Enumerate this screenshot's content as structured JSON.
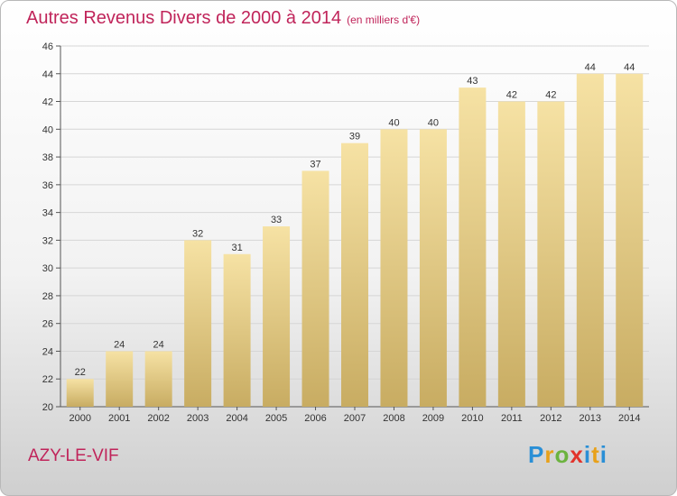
{
  "title": "Autres Revenus Divers de 2000 à 2014",
  "subtitle": "(en milliers d'€)",
  "commune": "AZY-LE-VIF",
  "logo": {
    "text": "Proxiti",
    "letters": [
      "P",
      "r",
      "o",
      "x",
      "i",
      "t",
      "i"
    ]
  },
  "colors": {
    "title": "#c0245a",
    "bar_top": "#f6e2a4",
    "bar_bottom": "#c8ac62",
    "grid": "#d6d6d6"
  },
  "chart_data": {
    "type": "bar",
    "title": "Autres Revenus Divers de 2000 à 2014",
    "subtitle": "(en milliers d'€)",
    "categories": [
      "2000",
      "2001",
      "2002",
      "2003",
      "2004",
      "2005",
      "2006",
      "2007",
      "2008",
      "2009",
      "2010",
      "2011",
      "2012",
      "2013",
      "2014"
    ],
    "values": [
      22,
      24,
      24,
      32,
      31,
      33,
      37,
      39,
      40,
      40,
      43,
      42,
      42,
      44,
      44
    ],
    "ylim": [
      20,
      46
    ],
    "yticks": [
      20,
      22,
      24,
      26,
      28,
      30,
      32,
      34,
      36,
      38,
      40,
      42,
      44,
      46
    ],
    "grid": true,
    "legend": "none"
  }
}
